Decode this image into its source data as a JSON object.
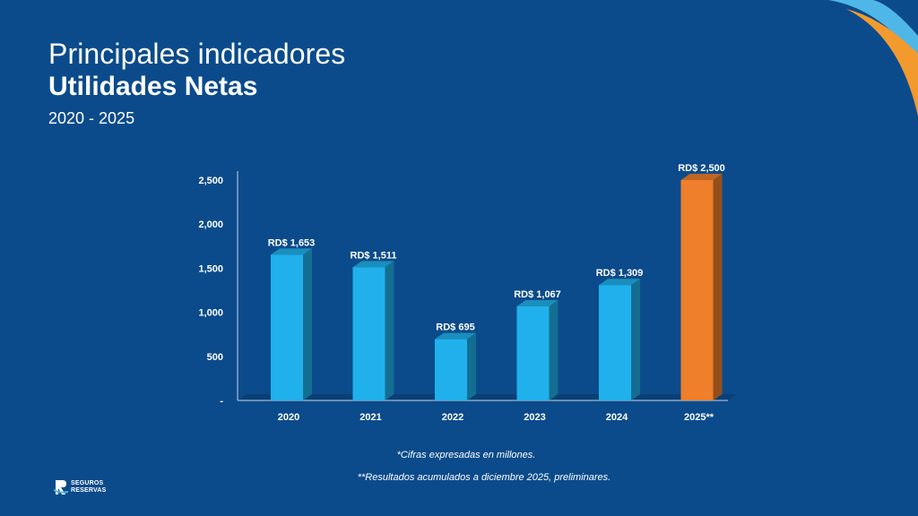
{
  "title": {
    "line1": "Principales indicadores",
    "line2": "Utilidades Netas",
    "line3": "2020 - 2025"
  },
  "chart_data": {
    "type": "bar",
    "title": "Utilidades Netas",
    "xlabel": "",
    "ylabel": "",
    "ylim": [
      0,
      2500
    ],
    "y_ticks": [
      0,
      500,
      1000,
      1500,
      2000,
      2500
    ],
    "y_tick_labels": [
      "-",
      "500",
      "1,000",
      "1,500",
      "2,000",
      "2,500"
    ],
    "categories": [
      "2020",
      "2021",
      "2022",
      "2023",
      "2024",
      "2025**"
    ],
    "values": [
      1653,
      1511,
      695,
      1067,
      1309,
      2500
    ],
    "data_labels": [
      "RD$ 1,653",
      "RD$ 1,511",
      "RD$ 695",
      "RD$ 1,067",
      "RD$ 1,309",
      "RD$ 2,500"
    ],
    "colors": [
      "#20b1ec",
      "#20b1ec",
      "#20b1ec",
      "#20b1ec",
      "#20b1ec",
      "#ef7f2b"
    ],
    "grid": false,
    "legend": "none"
  },
  "footnotes": {
    "note1": "*Cifras expresadas en millones.",
    "note2": "**Resultados acumulados a diciembre 2025, preliminares."
  },
  "logo": {
    "line1": "SEGUROS",
    "line2": "RESERVAS"
  },
  "colors": {
    "background": "#0b4b8b",
    "bar": "#20b1ec",
    "highlight_bar": "#ef7f2b",
    "text": "#ffffff"
  }
}
